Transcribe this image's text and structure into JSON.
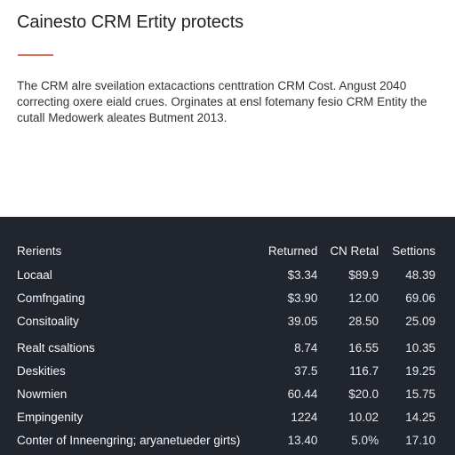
{
  "document": {
    "title": "Cainesto CRM Ertity protects",
    "intro_lines": [
      "The CRM alre sveilation extacactions centtration CRM Cost. Angust 2040",
      "correcting oxere eiald crues. Orginates at ensl fotemany fesio CRM Entity the",
      "cutall Medowerk aleates Butment 2013."
    ],
    "accent_color": "#d6705a"
  },
  "table": {
    "background": "#20252e",
    "headers": [
      "Rerients",
      "Returned",
      "CN Retal",
      "Settions"
    ],
    "rows": [
      [
        "Locaal",
        "$3.34",
        "$89.9",
        "48.39"
      ],
      [
        "Comfngating",
        "$3.90",
        "12.00",
        "69.06"
      ],
      [
        "Consitoality",
        "39.05",
        "28.50",
        "25.09"
      ],
      [
        "Realt csaltions",
        "8.74",
        "16.55",
        "10.35"
      ],
      [
        "Deskities",
        "37.5",
        "116.7",
        "19.25"
      ],
      [
        "Nowmien",
        "60.44",
        "$20.0",
        "15.75"
      ],
      [
        "Empingenity",
        "1224",
        "10.02",
        "14.25"
      ],
      [
        "Conter of Inneengring; aryanetueder girts)",
        "13.40",
        "5.0%",
        "17.10"
      ]
    ]
  }
}
